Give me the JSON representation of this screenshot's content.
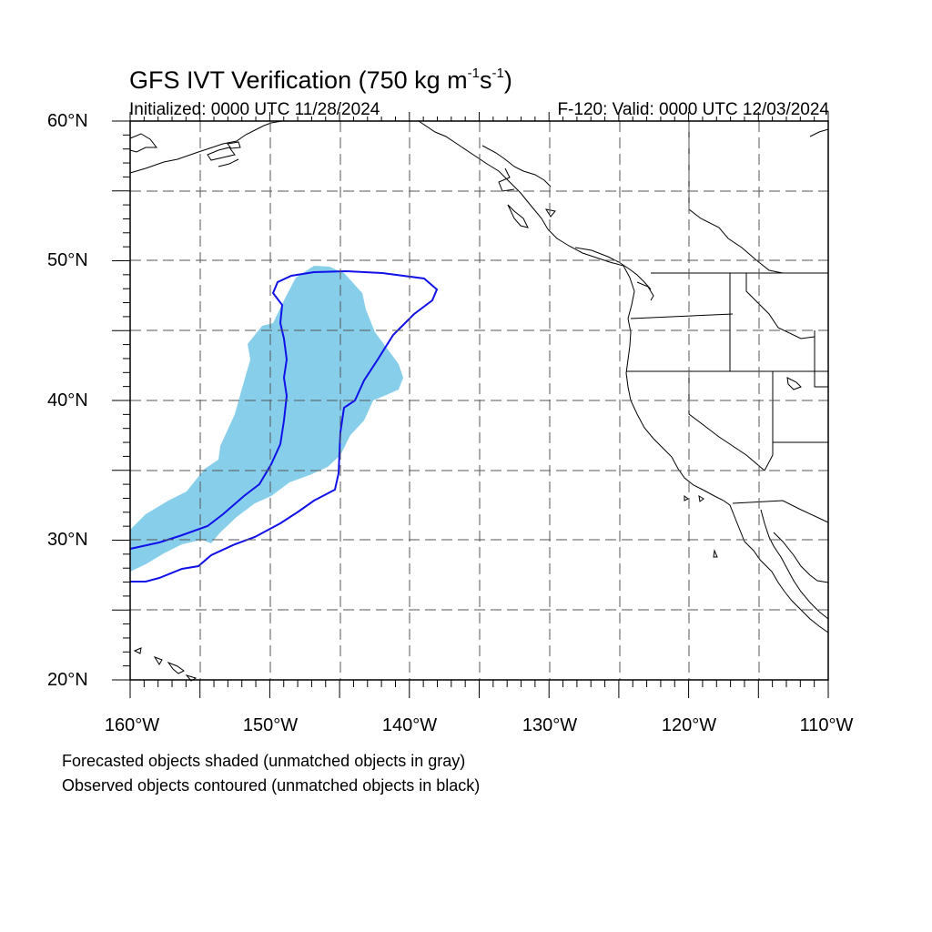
{
  "title": {
    "main": "GFS IVT Verification (750 kg m",
    "exp1": "-1",
    "mid": "s",
    "exp2": "-1",
    "end": ")"
  },
  "initialized": "Initialized: 0000 UTC 11/28/2024",
  "valid": "F-120: Valid: 0000 UTC 12/03/2024",
  "lat_labels": [
    "60°N",
    "50°N",
    "40°N",
    "30°N",
    "20°N"
  ],
  "lon_labels": [
    "160°W",
    "150°W",
    "140°W",
    "130°W",
    "120°W",
    "110°W"
  ],
  "notes": {
    "forecast": "Forecasted objects shaded (unmatched objects in gray)",
    "observed": "Observed objects contoured (unmatched objects in black)"
  },
  "colors": {
    "forecast_fill": "#87CEEB",
    "observed_contour": "#1010E8",
    "coastline": "#000000",
    "grid": "#555555"
  }
}
